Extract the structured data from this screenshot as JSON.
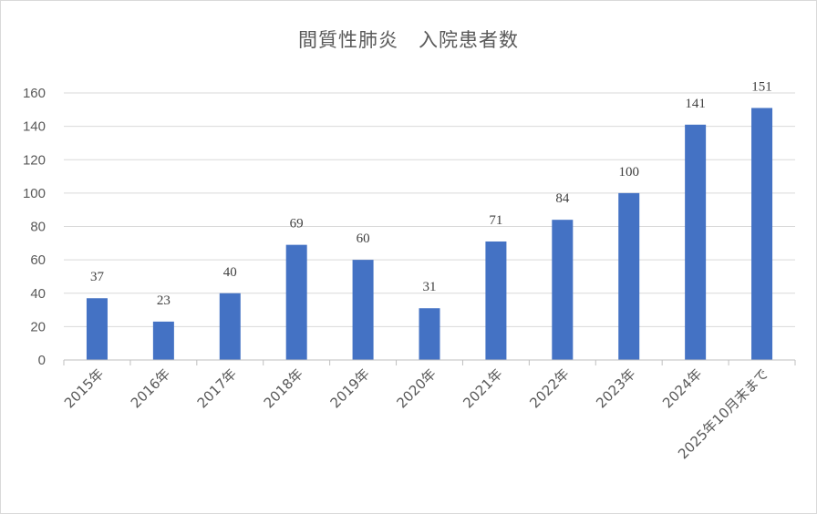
{
  "chart_data": {
    "type": "bar",
    "title": "間質性肺炎　入院患者数",
    "xlabel": "",
    "ylabel": "",
    "categories": [
      "2015年",
      "2016年",
      "2017年",
      "2018年",
      "2019年",
      "2020年",
      "2021年",
      "2022年",
      "2023年",
      "2024年",
      "2025年10月末まで"
    ],
    "values": [
      37,
      23,
      40,
      69,
      60,
      31,
      71,
      84,
      100,
      141,
      151
    ],
    "ylim": [
      0,
      160
    ],
    "yticks": [
      0,
      20,
      40,
      60,
      80,
      100,
      120,
      140,
      160
    ],
    "grid": true,
    "legend": "none",
    "bar_color": "#4472c4",
    "grid_color": "#d9d9d9"
  }
}
